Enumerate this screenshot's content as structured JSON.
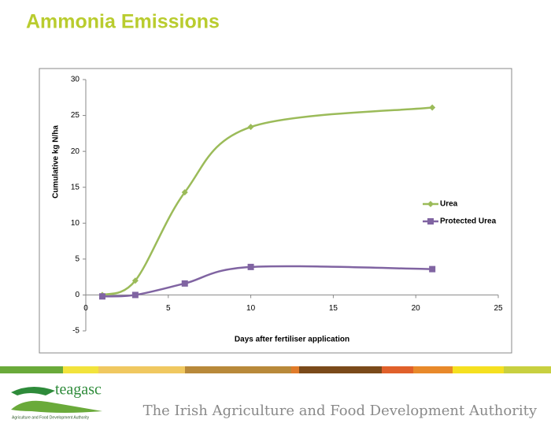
{
  "slide_title": "Ammonia Emissions",
  "chart_data": {
    "type": "line",
    "x_label": "Days after fertiliser application",
    "y_label": "Cumulative kg N/ha",
    "x": [
      1,
      3,
      6,
      10,
      21
    ],
    "series": [
      {
        "name": "Urea",
        "color": "#9bbb59",
        "marker": "diamond",
        "values": [
          0,
          2,
          14.3,
          23.4,
          26.1
        ]
      },
      {
        "name": "Protected Urea",
        "color": "#8064a2",
        "marker": "square",
        "values": [
          -0.2,
          0,
          1.6,
          3.9,
          3.6
        ]
      }
    ],
    "xlim": [
      0,
      25
    ],
    "xticks": [
      0,
      5,
      10,
      15,
      20,
      25
    ],
    "ylim": [
      -5,
      30
    ],
    "yticks": [
      -5,
      0,
      5,
      10,
      15,
      20,
      25,
      30
    ],
    "smooth": true,
    "legend": "right"
  },
  "footer": {
    "logo": "teagasc",
    "logo_subtitle": "Agriculture and Food Development Authority",
    "tagline": "The Irish Agriculture and Food Development Authority"
  }
}
